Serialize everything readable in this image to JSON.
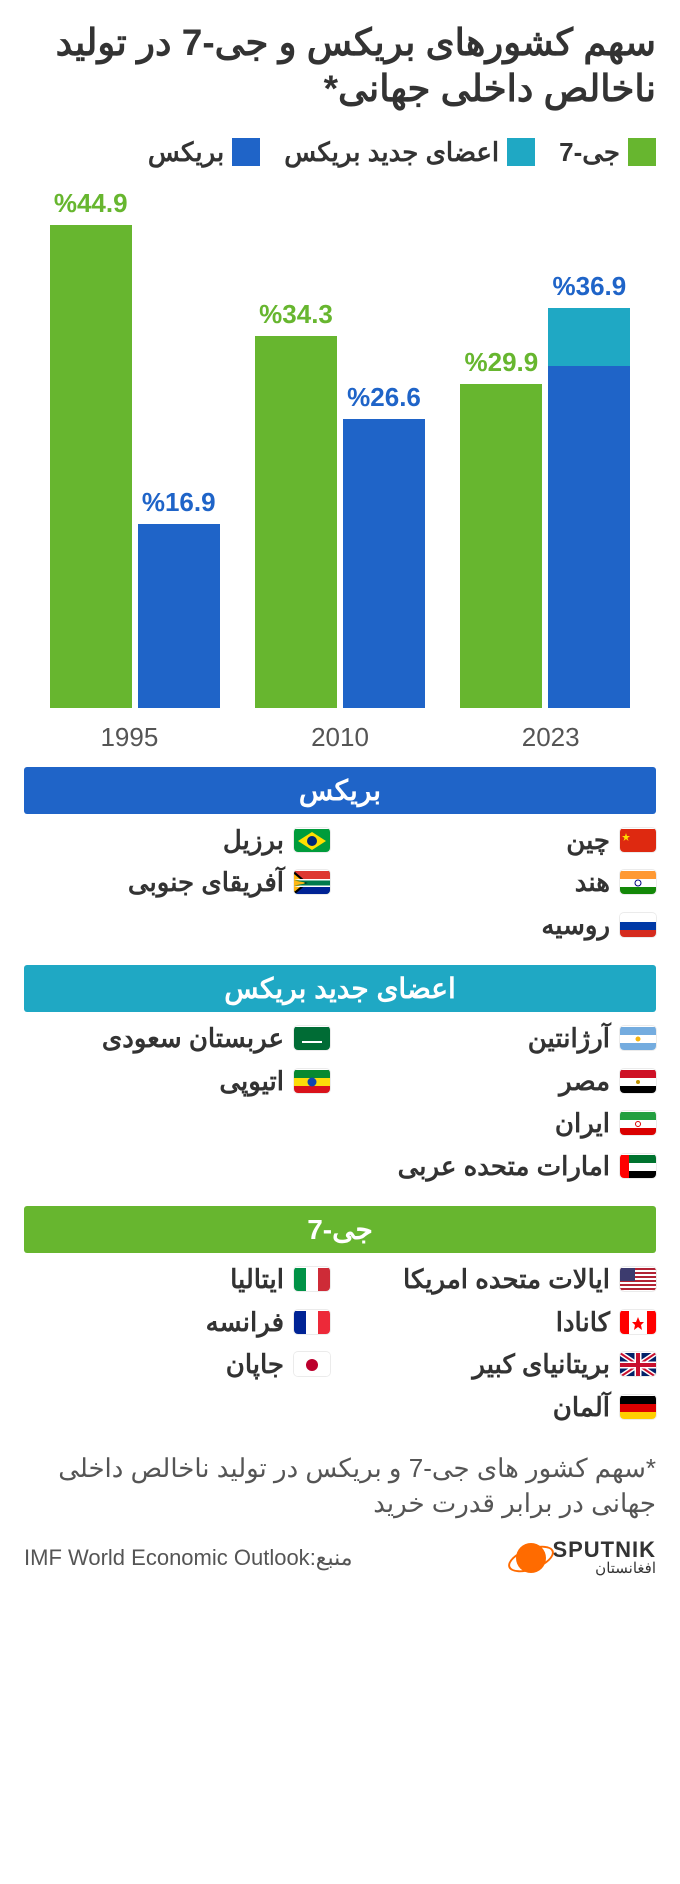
{
  "title": "سهم کشورهای بریکس و جی-7 در تولید ناخالص داخلی جهانی*",
  "legend": {
    "g7": {
      "label": "جی-7",
      "color": "#67b62f"
    },
    "new_brics": {
      "label": "اعضای جدید بریکس",
      "color": "#1fa8c4"
    },
    "brics": {
      "label": "بریکس",
      "color": "#1f64c8"
    }
  },
  "chart": {
    "type": "bar",
    "ymax": 48,
    "label_colors": {
      "g7": "#67b62f",
      "brics": "#1f64c8"
    },
    "years": [
      {
        "year": "1995",
        "g7": 44.9,
        "brics": 16.9,
        "new_brics": 0,
        "stacked": false
      },
      {
        "year": "2010",
        "g7": 34.3,
        "brics": 26.6,
        "new_brics": 0,
        "stacked": false
      },
      {
        "year": "2023",
        "g7": 29.9,
        "brics_lower": 31.5,
        "new_brics": 5.4,
        "total_label": "%36.9",
        "stacked": true
      }
    ],
    "labels": {
      "y1995_g7": "%44.9",
      "y1995_brics": "%16.9",
      "y2010_g7": "%34.3",
      "y2010_brics": "%26.6",
      "y2023_g7": "%29.9",
      "y2023_total": "%36.9"
    }
  },
  "sections": {
    "brics": {
      "title": "بریکس",
      "color": "#1f64c8",
      "col1": [
        "چین",
        "هند",
        "روسیه"
      ],
      "col2": [
        "برزیل",
        "آفریقای جنوبی"
      ]
    },
    "new_brics": {
      "title": "اعضای جدید بریکس",
      "color": "#1fa8c4",
      "col1": [
        "آرژانتین",
        "مصر",
        "ایران",
        "امارات متحده عربی"
      ],
      "col2": [
        "عربستان سعودی",
        "اتیوپی"
      ]
    },
    "g7": {
      "title": "جی-7",
      "color": "#67b62f",
      "col1": [
        "ایالات متحده امریکا",
        "کانادا",
        "بریتانیای کبیر",
        "آلمان"
      ],
      "col2": [
        "ایتالیا",
        "فرانسه",
        "جاپان"
      ]
    }
  },
  "footnote": "*سهم کشور های جی-7 و بریکس در تولید ناخالص داخلی جهانی در برابر قدرت خرید",
  "source_label": "منبع:",
  "source_value": "IMF World Economic Outlook",
  "logo": {
    "main": "SPUTNIK",
    "sub": "افغانستان"
  },
  "flags": {
    "چین": "<svg viewBox='0 0 36 24'><rect width='36' height='24' fill='#de2910'/><polygon points='6,4 7,7 10,7 7.5,9 8.5,12 6,10 3.5,12 4.5,9 2,7 5,7' fill='#ffde00'/></svg>",
    "هند": "<svg viewBox='0 0 36 24'><rect width='36' height='8' fill='#ff9933'/><rect y='8' width='36' height='8' fill='#fff'/><rect y='16' width='36' height='8' fill='#138808'/><circle cx='18' cy='12' r='3' fill='none' stroke='#000080' stroke-width='1'/></svg>",
    "روسیه": "<svg viewBox='0 0 36 24'><rect width='36' height='8' fill='#fff'/><rect y='8' width='36' height='8' fill='#0039a6'/><rect y='16' width='36' height='8' fill='#d52b1e'/></svg>",
    "برزیل": "<svg viewBox='0 0 36 24'><rect width='36' height='24' fill='#009c3b'/><polygon points='18,3 32,12 18,21 4,12' fill='#ffdf00'/><circle cx='18' cy='12' r='5' fill='#002776'/></svg>",
    "آفریقای جنوبی": "<svg viewBox='0 0 36 24'><rect width='36' height='24' fill='#007a4d'/><rect width='36' height='8' fill='#de3831'/><rect y='16' width='36' height='8' fill='#002395'/><path d='M0 0 L14 12 L0 24 Z' fill='#000'/><path d='M0 3 L11 12 L0 21 Z' fill='#ffb612'/><path d='M0 8 L36 8 L36 16 L0 16 L16 12 Z' fill='#fff'/><path d='M0 9.5 L36 9.5 L36 14.5 L0 14.5 L14 12 Z' fill='#007a4d'/></svg>",
    "آرژانتین": "<svg viewBox='0 0 36 24'><rect width='36' height='8' fill='#74acdf'/><rect y='8' width='36' height='8' fill='#fff'/><rect y='16' width='36' height='8' fill='#74acdf'/><circle cx='18' cy='12' r='2.5' fill='#f6b40e'/></svg>",
    "مصر": "<svg viewBox='0 0 36 24'><rect width='36' height='8' fill='#ce1126'/><rect y='8' width='36' height='8' fill='#fff'/><rect y='16' width='36' height='8' fill='#000'/><circle cx='18' cy='12' r='2' fill='#c09300'/></svg>",
    "ایران": "<svg viewBox='0 0 36 24'><rect width='36' height='8' fill='#239f40'/><rect y='8' width='36' height='8' fill='#fff'/><rect y='16' width='36' height='8' fill='#da0000'/><circle cx='18' cy='12' r='2.5' fill='none' stroke='#da0000' stroke-width='1'/></svg>",
    "امارات متحده عربی": "<svg viewBox='0 0 36 24'><rect width='9' height='24' fill='#ff0000'/><rect x='9' width='27' height='8' fill='#00732f'/><rect x='9' y='8' width='27' height='8' fill='#fff'/><rect x='9' y='16' width='27' height='8' fill='#000'/></svg>",
    "عربستان سعودی": "<svg viewBox='0 0 36 24'><rect width='36' height='24' fill='#006c35'/><rect x='8' y='14' width='20' height='2' fill='#fff'/></svg>",
    "اتیوپی": "<svg viewBox='0 0 36 24'><rect width='36' height='8' fill='#078930'/><rect y='8' width='36' height='8' fill='#fcdd09'/><rect y='16' width='36' height='8' fill='#da121a'/><circle cx='18' cy='12' r='4.5' fill='#0f47af'/></svg>",
    "ایالات متحده امریکا": "<svg viewBox='0 0 36 24'><rect width='36' height='24' fill='#b22234'/><rect y='2' width='36' height='2' fill='#fff'/><rect y='6' width='36' height='2' fill='#fff'/><rect y='10' width='36' height='2' fill='#fff'/><rect y='14' width='36' height='2' fill='#fff'/><rect y='18' width='36' height='2' fill='#fff'/><rect y='22' width='36' height='2' fill='#fff'/><rect width='15' height='13' fill='#3c3b6e'/></svg>",
    "کانادا": "<svg viewBox='0 0 36 24'><rect width='9' height='24' fill='#ff0000'/><rect x='9' width='18' height='24' fill='#fff'/><rect x='27' width='9' height='24' fill='#ff0000'/><polygon points='18,6 20,11 24,11 21,14 22,19 18,16 14,19 15,14 12,11 16,11' fill='#ff0000'/></svg>",
    "بریتانیای کبیر": "<svg viewBox='0 0 36 24'><rect width='36' height='24' fill='#012169'/><path d='M0 0 L36 24 M36 0 L0 24' stroke='#fff' stroke-width='5'/><path d='M0 0 L36 24 M36 0 L0 24' stroke='#c8102e' stroke-width='2'/><path d='M18 0 V24 M0 12 H36' stroke='#fff' stroke-width='7'/><path d='M18 0 V24 M0 12 H36' stroke='#c8102e' stroke-width='4'/></svg>",
    "آلمان": "<svg viewBox='0 0 36 24'><rect width='36' height='8' fill='#000'/><rect y='8' width='36' height='8' fill='#dd0000'/><rect y='16' width='36' height='8' fill='#ffce00'/></svg>",
    "ایتالیا": "<svg viewBox='0 0 36 24'><rect width='12' height='24' fill='#009246'/><rect x='12' width='12' height='24' fill='#fff'/><rect x='24' width='12' height='24' fill='#ce2b37'/></svg>",
    "فرانسه": "<svg viewBox='0 0 36 24'><rect width='12' height='24' fill='#002395'/><rect x='12' width='12' height='24' fill='#fff'/><rect x='24' width='12' height='24' fill='#ed2939'/></svg>",
    "جاپان": "<svg viewBox='0 0 36 24'><rect width='36' height='24' fill='#fff'/><circle cx='18' cy='12' r='6' fill='#bc002d'/></svg>"
  }
}
